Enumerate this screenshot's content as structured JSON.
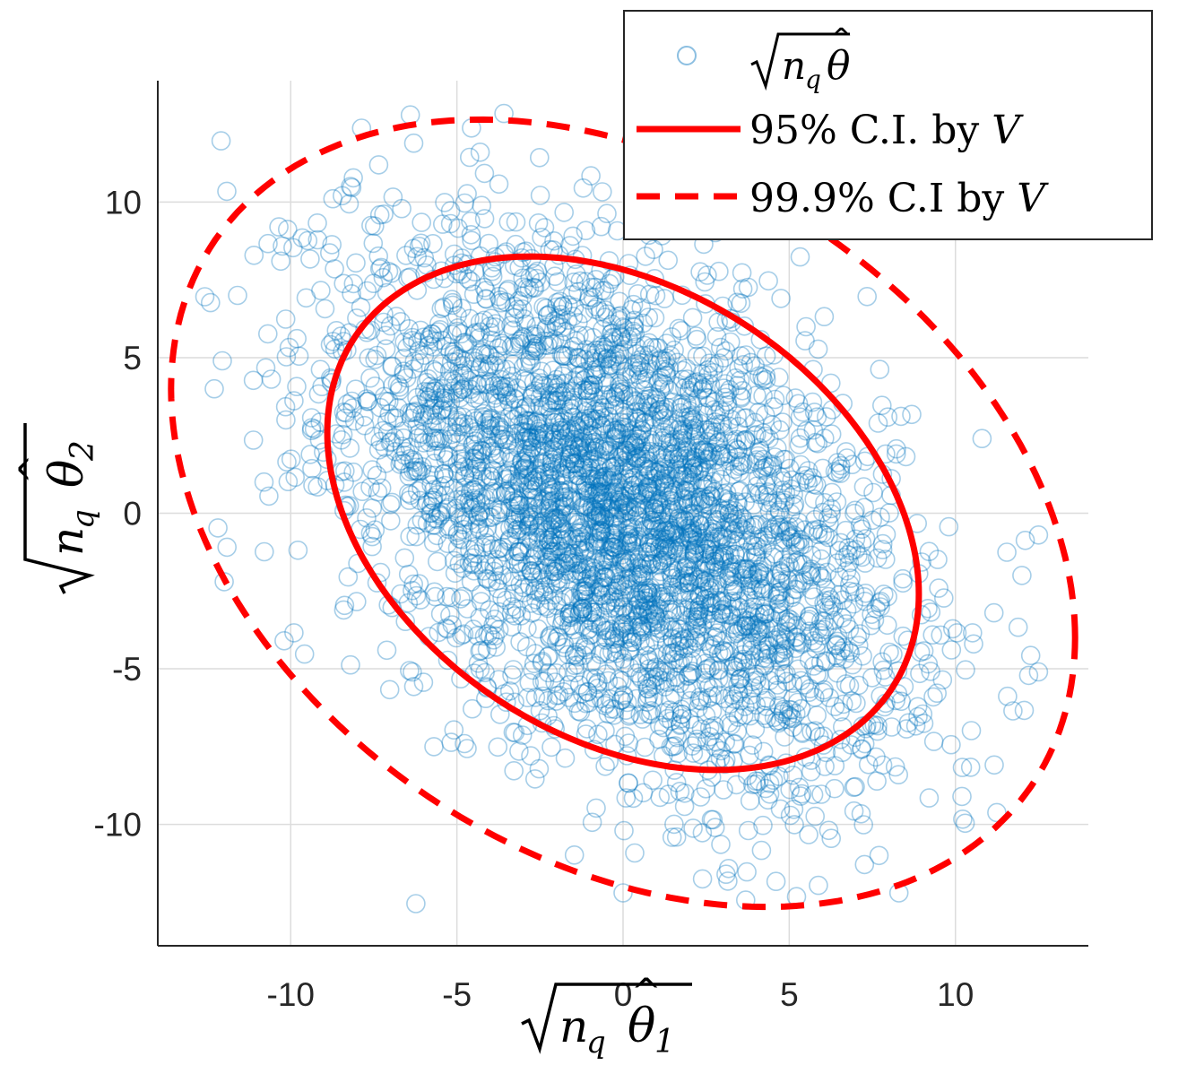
{
  "chart_data": {
    "type": "scatter",
    "title": "",
    "xlabel": "√n_q θ̂₁",
    "ylabel": "√n_q θ̂₂",
    "xlim": [
      -14,
      14
    ],
    "ylim": [
      -13.9,
      13.9
    ],
    "x_ticks": [
      -10,
      -5,
      0,
      5,
      10
    ],
    "y_ticks": [
      -10,
      -5,
      0,
      5,
      10
    ],
    "x_tick_labels": [
      "-10",
      "-5",
      "0",
      "5",
      "10"
    ],
    "y_tick_labels": [
      "-10",
      "-5",
      "0",
      "5",
      "10"
    ],
    "grid": true,
    "legend_position": "top-right",
    "scatter": {
      "name": "√n_q θ̂",
      "color": "#0072BD",
      "n_points": 4000,
      "distribution": {
        "mean": [
          0,
          0
        ],
        "covariance": [
          [
            16.2,
            -7.8
          ],
          [
            -7.8,
            17.5
          ]
        ]
      },
      "extreme_points": [
        {
          "x": -6.4,
          "y": 12.8
        },
        {
          "x": -4.3,
          "y": 11.6
        },
        {
          "x": -8.2,
          "y": 10.5
        },
        {
          "x": -12.3,
          "y": 4.0
        },
        {
          "x": -11.6,
          "y": 7.0
        },
        {
          "x": -10.3,
          "y": 8.1
        },
        {
          "x": -10.2,
          "y": -4.1
        },
        {
          "x": -12.0,
          "y": -2.2
        },
        {
          "x": 12.5,
          "y": -0.7
        },
        {
          "x": 12.5,
          "y": -5.1
        },
        {
          "x": 10.8,
          "y": 2.4
        },
        {
          "x": 8.3,
          "y": -12.2
        },
        {
          "x": 0.0,
          "y": -12.2
        },
        {
          "x": 3.1,
          "y": -11.6
        },
        {
          "x": 7.7,
          "y": -11.0
        },
        {
          "x": 12.0,
          "y": -2.0
        }
      ]
    },
    "series": [
      {
        "name": "95% C.I. by V",
        "color": "#FF0000",
        "style": "solid",
        "ellipse": {
          "center": [
            0,
            0
          ],
          "x_extent": 8.9,
          "y_extent": 8.25,
          "at_x_max_y": -2.6,
          "at_y_max_x": -3.1
        }
      },
      {
        "name": "99.9% C.I by V",
        "color": "#FF0000",
        "style": "dashed",
        "ellipse": {
          "center": [
            0,
            0
          ],
          "x_extent": 13.6,
          "y_extent": 12.65,
          "at_x_max_y": -4.0,
          "at_y_max_x": -4.8
        }
      }
    ],
    "legend": {
      "entries": [
        {
          "label": "√n_q θ̂",
          "marker": "circle"
        },
        {
          "prefix": "95% C.I. by ",
          "var": "V",
          "marker": "solid-line"
        },
        {
          "prefix": "99.9% C.I by ",
          "var": "V",
          "marker": "dashed-line"
        }
      ]
    }
  }
}
